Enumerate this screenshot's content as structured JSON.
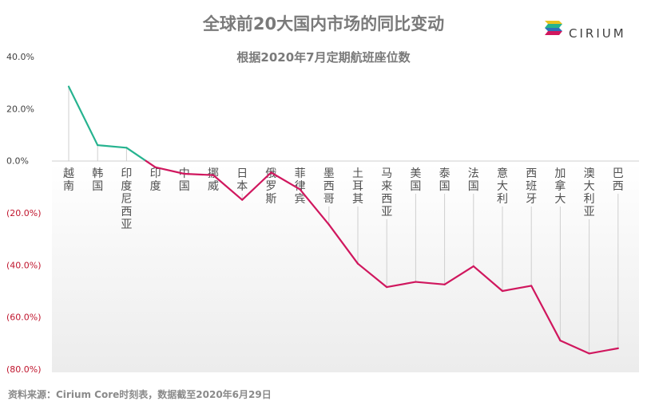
{
  "header": {
    "title": "全球前20大国内市场的同比变动",
    "subtitle": "根据2020年7月定期航班座位数",
    "logo_text": "CIRIUM"
  },
  "footer": {
    "source": "资料来源：Cirium Core时刻表，数据截至2020年6月29日"
  },
  "colors": {
    "positive": "#26b38f",
    "negative": "#d0175e",
    "neg_tick": "#c0162e",
    "grid": "#cfcfcf"
  },
  "chart_data": {
    "type": "line",
    "title": "全球前20大国内市场的同比变动",
    "subtitle": "根据2020年7月定期航班座位数",
    "xlabel": "",
    "ylabel": "",
    "ylim": [
      -80,
      40
    ],
    "yticks": [
      40,
      20,
      0,
      -20,
      -40,
      -60,
      -80
    ],
    "ytick_labels": [
      "40.0%",
      "20.0%",
      "0.0%",
      "(20.0%)",
      "(40.0%)",
      "(60.0%)",
      "(80.0%)"
    ],
    "categories": [
      "越南",
      "韩国",
      "印度尼西亚",
      "印度",
      "中国",
      "挪威",
      "日本",
      "俄罗斯",
      "菲律宾",
      "墨西哥",
      "土耳其",
      "马来西亚",
      "美国",
      "泰国",
      "法国",
      "意大利",
      "西班牙",
      "加拿大",
      "澳大利亚",
      "巴西"
    ],
    "values": [
      28.5,
      6.0,
      5.0,
      -2.5,
      -5.0,
      -5.5,
      -15.0,
      -4.5,
      -11.0,
      -24.5,
      -39.5,
      -48.5,
      -46.5,
      -47.5,
      -40.5,
      -50.0,
      -48.0,
      -69.0,
      -74.0,
      -72.0
    ],
    "grid": false,
    "legend": "none"
  }
}
